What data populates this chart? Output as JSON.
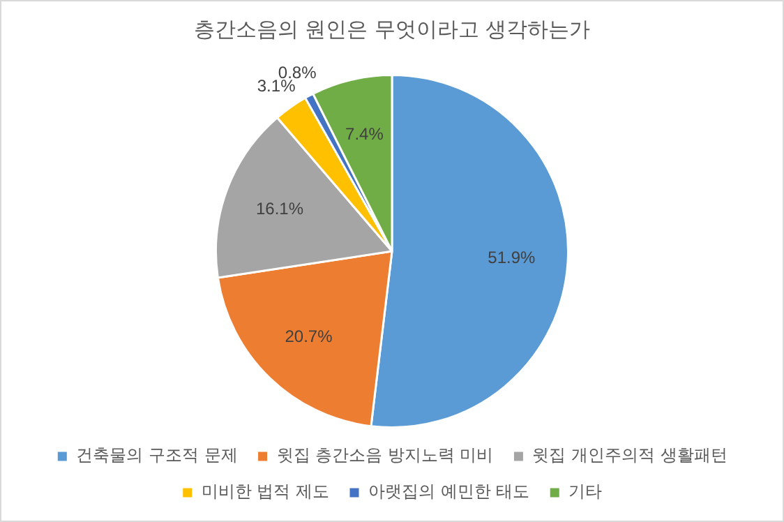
{
  "chart_data": {
    "type": "pie",
    "title": "층간소음의 원인은 무엇이라고 생각하는가",
    "categories": [
      "건축물의 구조적 문제",
      "윗집 층간소음 방지노력 미비",
      "윗집 개인주의적 생활패턴",
      "미비한 법적 제도",
      "아랫집의 예민한 태도",
      "기타"
    ],
    "values": [
      51.9,
      20.7,
      16.1,
      3.1,
      0.8,
      7.4
    ],
    "colors": [
      "#5b9bd5",
      "#ed7d31",
      "#a5a5a5",
      "#ffc000",
      "#4472c4",
      "#70ad47"
    ],
    "value_labels": [
      "51.9%",
      "20.7%",
      "16.1%",
      "3.1%",
      "0.8%",
      "7.4%"
    ],
    "legend": "bottom"
  }
}
